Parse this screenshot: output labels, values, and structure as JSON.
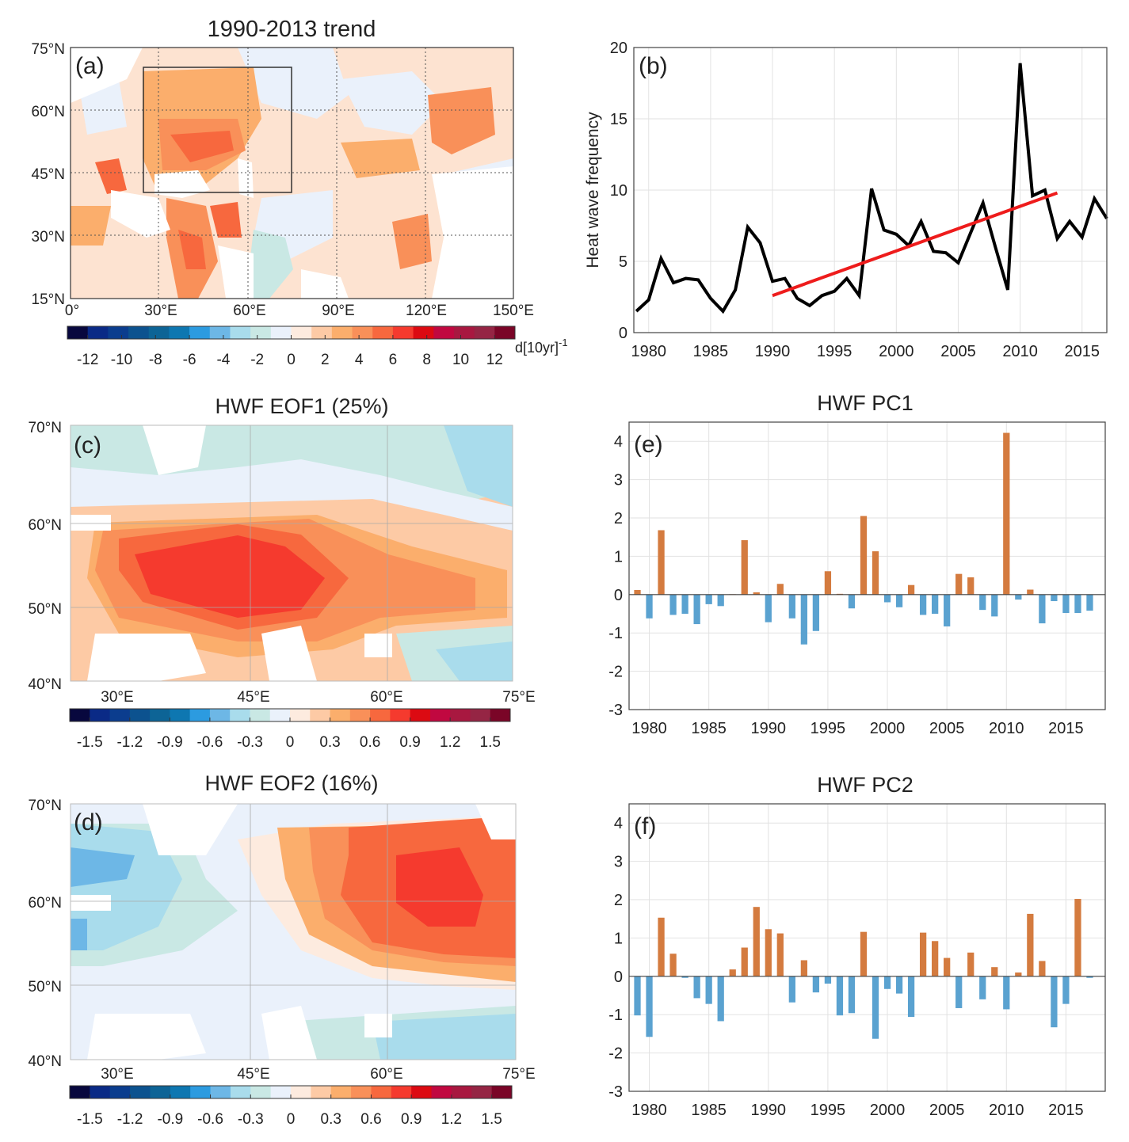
{
  "colorbar_colors": [
    "#08083e",
    "#0a2a86",
    "#0b3d8e",
    "#0c528f",
    "#0d6496",
    "#0e77b1",
    "#2c9be0",
    "#6db7e6",
    "#a9dcec",
    "#c9e8e4",
    "#eaf1fb",
    "#fdebdf",
    "#fdcaa5",
    "#fbae6c",
    "#f99059",
    "#f7683e",
    "#f53a2e",
    "#dc0a12",
    "#c10840",
    "#a81840",
    "#952544",
    "#7a0527"
  ],
  "panels": {
    "a": {
      "title": "1990-2013 trend",
      "label": "(a)",
      "y_ticks": [
        "75°N",
        "60°N",
        "45°N",
        "30°N",
        "15°N"
      ],
      "x_ticks": [
        "0°",
        "30°E",
        "60°E",
        "90°E",
        "120°E",
        "150°E"
      ],
      "colorbar_ticks": [
        "-12",
        "-10",
        "-8",
        "-6",
        "-4",
        "-2",
        "0",
        "2",
        "4",
        "6",
        "8",
        "10",
        "12"
      ],
      "colorbar_unit": "d[10yr]",
      "colorbar_unit_exp": "-1"
    },
    "c": {
      "title": "HWF EOF1 (25%)",
      "label": "(c)",
      "y_ticks": [
        "70°N",
        "60°N",
        "50°N",
        "40°N"
      ],
      "x_ticks": [
        "30°E",
        "45°E",
        "60°E",
        "75°E"
      ],
      "colorbar_ticks": [
        "-1.5",
        "-1.2",
        "-0.9",
        "-0.6",
        "-0.3",
        "0",
        "0.3",
        "0.6",
        "0.9",
        "1.2",
        "1.5"
      ]
    },
    "d": {
      "title": "HWF EOF2 (16%)",
      "label": "(d)",
      "y_ticks": [
        "70°N",
        "60°N",
        "50°N",
        "40°N"
      ],
      "x_ticks": [
        "30°E",
        "45°E",
        "60°E",
        "75°E"
      ],
      "colorbar_ticks": [
        "-1.5",
        "-1.2",
        "-0.9",
        "-0.6",
        "-0.3",
        "0",
        "0.3",
        "0.6",
        "0.9",
        "1.2",
        "1.5"
      ]
    }
  },
  "chart_data": [
    {
      "id": "b",
      "type": "line",
      "label": "(b)",
      "title": "",
      "xlabel": "",
      "ylabel": "Heat wave frequency",
      "xlim": [
        1978.8,
        2017
      ],
      "ylim": [
        0,
        20
      ],
      "xticks": [
        1980,
        1985,
        1990,
        1995,
        2000,
        2005,
        2010,
        2015
      ],
      "yticks": [
        0,
        5,
        10,
        15,
        20
      ],
      "grid": true,
      "series": [
        {
          "name": "HWF",
          "color": "#000000",
          "x": [
            1979,
            1980,
            1981,
            1982,
            1983,
            1984,
            1985,
            1986,
            1987,
            1988,
            1989,
            1990,
            1991,
            1992,
            1993,
            1994,
            1995,
            1996,
            1997,
            1998,
            1999,
            2000,
            2001,
            2002,
            2003,
            2004,
            2005,
            2006,
            2007,
            2008,
            2009,
            2010,
            2011,
            2012,
            2013,
            2014,
            2015,
            2016,
            2017
          ],
          "y": [
            1.5,
            2.3,
            5.2,
            3.5,
            3.8,
            3.7,
            2.4,
            1.5,
            3.0,
            7.4,
            6.3,
            3.6,
            3.8,
            2.4,
            1.9,
            2.6,
            2.9,
            3.8,
            2.6,
            10.1,
            7.2,
            6.9,
            6.1,
            7.8,
            5.7,
            5.6,
            4.9,
            7.0,
            9.1,
            6.0,
            3.0,
            18.9,
            9.6,
            10.0,
            6.6,
            7.8,
            6.7,
            9.4,
            8.0
          ]
        },
        {
          "name": "Trend 1990-2013",
          "color": "#ee1c1c",
          "x": [
            1990,
            2013
          ],
          "y": [
            2.6,
            9.8
          ]
        }
      ]
    },
    {
      "id": "e",
      "type": "bar",
      "label": "(e)",
      "title": "HWF PC1",
      "xlim": [
        1978.3,
        2018.3
      ],
      "ylim": [
        -3,
        4.5
      ],
      "xticks": [
        1980,
        1985,
        1990,
        1995,
        2000,
        2005,
        2010,
        2015
      ],
      "yticks": [
        -3,
        -2,
        -1,
        0,
        1,
        2,
        3,
        4
      ],
      "grid": true,
      "positive_color": "#d47b3f",
      "negative_color": "#5aa2d0",
      "x": [
        1979,
        1980,
        1981,
        1982,
        1983,
        1984,
        1985,
        1986,
        1987,
        1988,
        1989,
        1990,
        1991,
        1992,
        1993,
        1994,
        1995,
        1996,
        1997,
        1998,
        1999,
        2000,
        2001,
        2002,
        2003,
        2004,
        2005,
        2006,
        2007,
        2008,
        2009,
        2010,
        2011,
        2012,
        2013,
        2014,
        2015,
        2016,
        2017
      ],
      "values": [
        0.12,
        -0.62,
        1.68,
        -0.53,
        -0.5,
        -0.77,
        -0.25,
        -0.3,
        0.01,
        1.42,
        0.06,
        -0.72,
        0.28,
        -0.62,
        -1.3,
        -0.95,
        0.61,
        0.02,
        -0.36,
        2.05,
        1.13,
        -0.2,
        -0.33,
        0.25,
        -0.53,
        -0.5,
        -0.83,
        0.54,
        0.45,
        -0.4,
        -0.57,
        4.22,
        -0.13,
        0.13,
        -0.75,
        -0.17,
        -0.48,
        -0.48,
        -0.42
      ]
    },
    {
      "id": "f",
      "type": "bar",
      "label": "(f)",
      "title": "HWF PC2",
      "xlim": [
        1978.3,
        2018.3
      ],
      "ylim": [
        -3,
        4.5
      ],
      "xticks": [
        1980,
        1985,
        1990,
        1995,
        2000,
        2005,
        2010,
        2015
      ],
      "yticks": [
        -3,
        -2,
        -1,
        0,
        1,
        2,
        3,
        4
      ],
      "grid": true,
      "positive_color": "#d47b3f",
      "negative_color": "#5aa2d0",
      "x": [
        1979,
        1980,
        1981,
        1982,
        1983,
        1984,
        1985,
        1986,
        1987,
        1988,
        1989,
        1990,
        1991,
        1992,
        1993,
        1994,
        1995,
        1996,
        1997,
        1998,
        1999,
        2000,
        2001,
        2002,
        2003,
        2004,
        2005,
        2006,
        2007,
        2008,
        2009,
        2010,
        2011,
        2012,
        2013,
        2014,
        2015,
        2016,
        2017
      ],
      "values": [
        -1.02,
        -1.58,
        1.53,
        0.59,
        -0.04,
        -0.57,
        -0.72,
        -1.17,
        0.18,
        0.75,
        1.81,
        1.23,
        1.12,
        -0.68,
        0.42,
        -0.42,
        -0.19,
        -1.02,
        -0.96,
        1.16,
        -1.63,
        -0.33,
        -0.45,
        -1.06,
        1.14,
        0.92,
        0.48,
        -0.83,
        0.62,
        -0.6,
        0.24,
        -0.86,
        0.1,
        1.63,
        0.4,
        -1.33,
        -0.72,
        2.02,
        -0.04
      ]
    }
  ]
}
